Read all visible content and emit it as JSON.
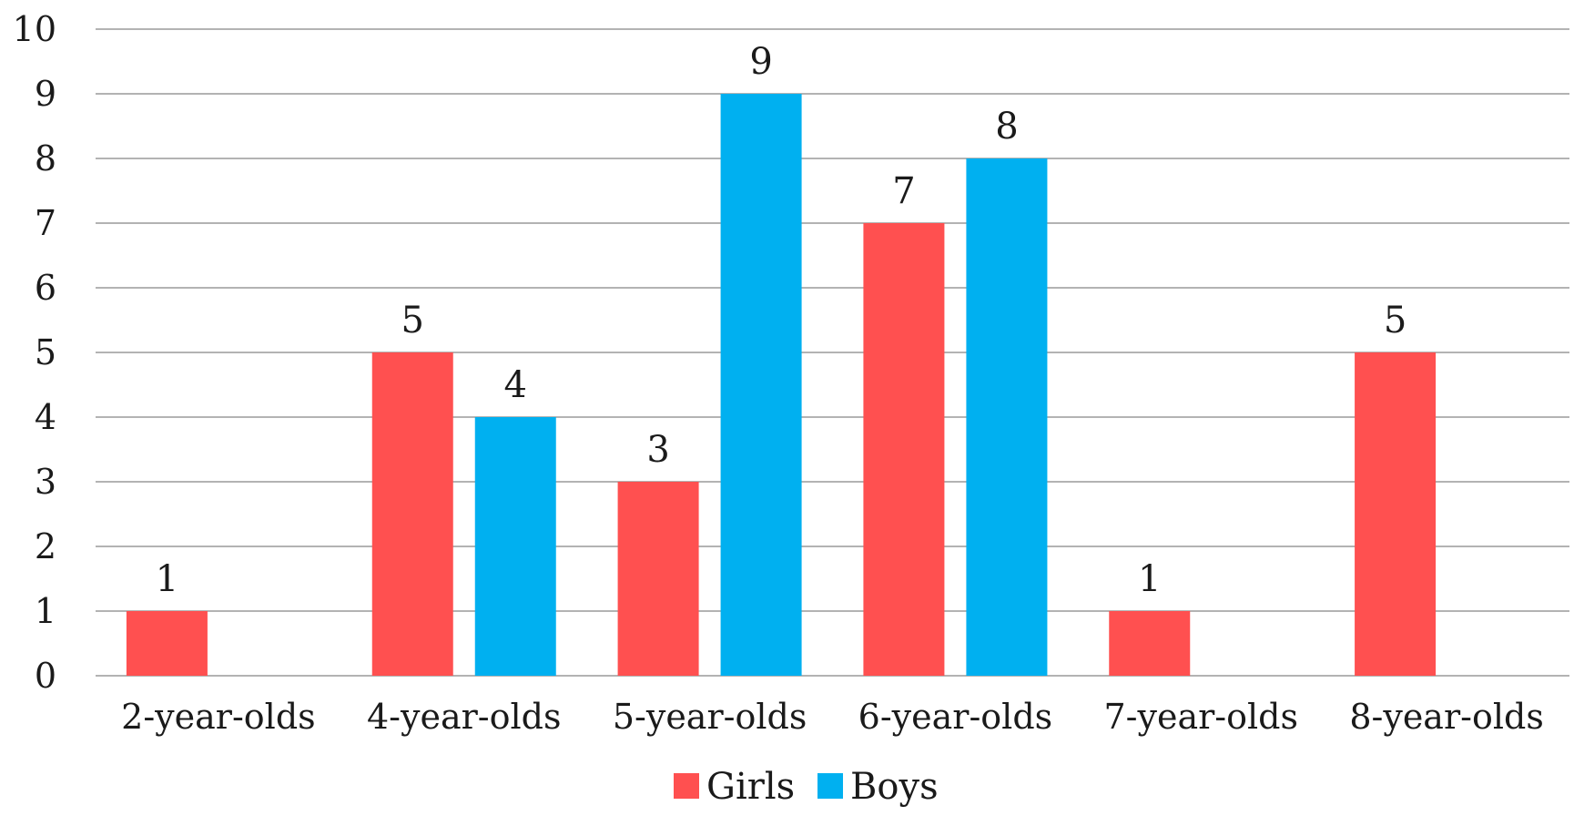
{
  "chart_data": {
    "type": "bar",
    "title": "",
    "xlabel": "",
    "ylabel": "",
    "ylim": [
      0,
      10
    ],
    "yticks": [
      0,
      1,
      2,
      3,
      4,
      5,
      6,
      7,
      8,
      9,
      10
    ],
    "grid": true,
    "legend_position": "bottom",
    "categories": [
      "2-year-olds",
      "4-year-olds",
      "5-year-olds",
      "6-year-olds",
      "7-year-olds",
      "8-year-olds"
    ],
    "series": [
      {
        "name": "Girls",
        "color": "#FF5050",
        "values": [
          1,
          5,
          3,
          7,
          1,
          5
        ]
      },
      {
        "name": "Boys",
        "color": "#00B0F0",
        "values": [
          null,
          4,
          9,
          8,
          null,
          null
        ]
      }
    ],
    "data_labels": true
  }
}
